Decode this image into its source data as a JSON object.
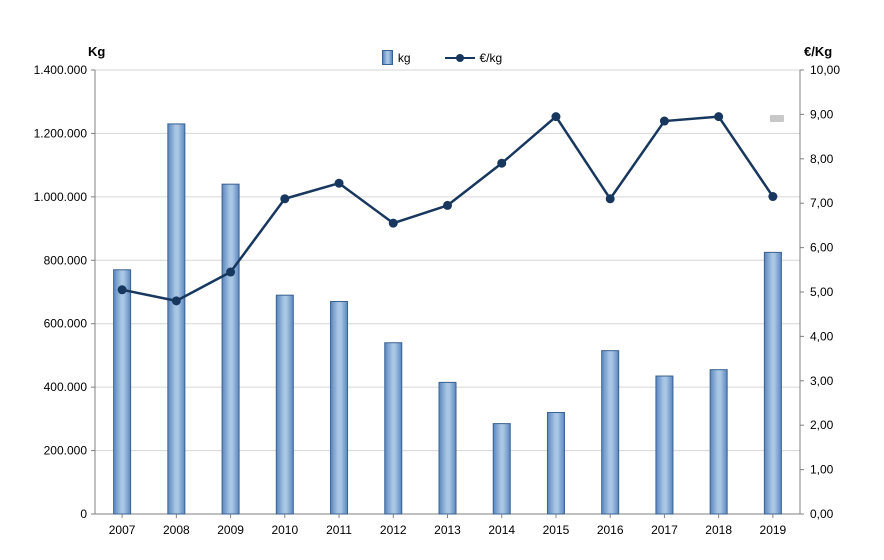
{
  "chart_data": {
    "type": "bar+line",
    "title": "",
    "categories": [
      "2007",
      "2008",
      "2009",
      "2010",
      "2011",
      "2012",
      "2013",
      "2014",
      "2015",
      "2016",
      "2017",
      "2018",
      "2019"
    ],
    "series": [
      {
        "name": "kg",
        "type": "bar",
        "axis": "left",
        "values": [
          770000,
          1230000,
          1040000,
          690000,
          670000,
          540000,
          415000,
          285000,
          320000,
          515000,
          435000,
          455000,
          825000
        ]
      },
      {
        "name": "€/kg",
        "type": "line",
        "axis": "right",
        "values": [
          5.05,
          4.8,
          5.45,
          7.1,
          7.45,
          6.55,
          6.95,
          7.9,
          8.95,
          7.1,
          8.85,
          8.95,
          7.15
        ]
      }
    ],
    "left_axis": {
      "title": "Kg",
      "min": 0,
      "max": 1400000,
      "step": 200000,
      "tick_values": [
        0,
        200000,
        400000,
        600000,
        800000,
        1000000,
        1200000,
        1400000
      ],
      "tick_labels": [
        "0",
        "200.000",
        "400.000",
        "600.000",
        "800.000",
        "1.000.000",
        "1.200.000",
        "1.400.000"
      ]
    },
    "right_axis": {
      "title": "€/Kg",
      "min": 0,
      "max": 10,
      "step": 1,
      "tick_values": [
        0,
        1,
        2,
        3,
        4,
        5,
        6,
        7,
        8,
        9,
        10
      ],
      "tick_labels": [
        "0,00",
        "1,00",
        "2,00",
        "3,00",
        "4,00",
        "5,00",
        "6,00",
        "7,00",
        "8,00",
        "9,00",
        "10,00"
      ]
    },
    "legend": {
      "position": "top-center",
      "entries": [
        "kg",
        "€/kg"
      ]
    },
    "grid": true,
    "colors": {
      "bar_fill_dark": "#5a87bf",
      "bar_fill_light": "#a9c6e5",
      "bar_stroke": "#39618f",
      "line": "#17375e",
      "grid": "#d6d6d6",
      "axis": "#808080",
      "text": "#000000"
    }
  }
}
